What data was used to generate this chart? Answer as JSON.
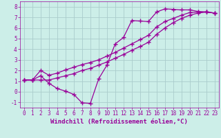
{
  "line1_x": [
    0,
    1,
    2,
    3,
    4,
    5,
    6,
    7,
    8,
    9,
    10,
    11,
    12,
    13,
    14,
    15,
    16,
    17,
    18,
    19,
    20,
    21,
    22,
    23
  ],
  "line1_y": [
    1.1,
    1.1,
    1.5,
    0.8,
    0.3,
    0.05,
    -0.25,
    -1.05,
    -1.1,
    1.2,
    2.5,
    4.5,
    5.1,
    6.7,
    6.65,
    6.6,
    7.5,
    7.8,
    7.75,
    7.7,
    7.7,
    7.55,
    7.5,
    7.4
  ],
  "line2_x": [
    0,
    1,
    2,
    3,
    4,
    5,
    6,
    7,
    8,
    9,
    10,
    11,
    12,
    13,
    14,
    15,
    16,
    17,
    18,
    19,
    20,
    21,
    22,
    23
  ],
  "line2_y": [
    1.1,
    1.1,
    2.0,
    1.55,
    1.75,
    2.05,
    2.3,
    2.55,
    2.75,
    3.0,
    3.35,
    3.7,
    4.1,
    4.5,
    4.9,
    5.3,
    6.1,
    6.6,
    6.9,
    7.2,
    7.45,
    7.5,
    7.5,
    7.4
  ],
  "line3_x": [
    0,
    1,
    2,
    3,
    4,
    5,
    6,
    7,
    8,
    9,
    10,
    11,
    12,
    13,
    14,
    15,
    16,
    17,
    18,
    19,
    20,
    21,
    22,
    23
  ],
  "line3_y": [
    1.1,
    1.1,
    1.1,
    1.1,
    1.3,
    1.5,
    1.7,
    2.0,
    2.2,
    2.5,
    2.8,
    3.15,
    3.5,
    3.9,
    4.25,
    4.65,
    5.4,
    6.0,
    6.5,
    6.9,
    7.2,
    7.4,
    7.5,
    7.4
  ],
  "line_color": "#990099",
  "bg_color": "#cceee8",
  "grid_color": "#aacccc",
  "xlabel": "Windchill (Refroidissement éolien,°C)",
  "xlim": [
    -0.5,
    23.5
  ],
  "ylim": [
    -1.5,
    8.5
  ],
  "xticks": [
    0,
    1,
    2,
    3,
    4,
    5,
    6,
    7,
    8,
    9,
    10,
    11,
    12,
    13,
    14,
    15,
    16,
    17,
    18,
    19,
    20,
    21,
    22,
    23
  ],
  "yticks": [
    -1,
    0,
    1,
    2,
    3,
    4,
    5,
    6,
    7,
    8
  ],
  "marker": "+",
  "marker_size": 4,
  "linewidth": 0.9,
  "xlabel_color": "#990099",
  "tick_color": "#990099",
  "axis_label_fontsize": 6.5,
  "tick_fontsize": 5.5
}
